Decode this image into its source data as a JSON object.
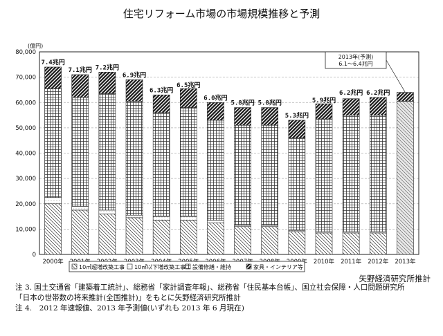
{
  "chart_data": {
    "type": "bar",
    "stacked": true,
    "title": "住宅リフォーム市場の市場規模推移と予測",
    "ylabel": "(億円)",
    "ylim": [
      0,
      80000
    ],
    "yticks": [
      "0",
      "10,000",
      "20,000",
      "30,000",
      "40,000",
      "50,000",
      "60,000",
      "70,000",
      "80,000"
    ],
    "grid": true,
    "categories": [
      "2000年",
      "2001年",
      "2002年",
      "2003年",
      "2004年",
      "2005年",
      "2006年",
      "2007年",
      "2008年",
      "2009年",
      "2010年",
      "2011年",
      "2012年",
      "2013年"
    ],
    "series": [
      {
        "name": "10㎡超増改築工事",
        "pattern": "diagonal",
        "values": [
          20000,
          17500,
          16000,
          14500,
          13500,
          13500,
          12500,
          11000,
          11000,
          9000,
          8500,
          8500,
          8500,
          60500
        ]
      },
      {
        "name": "10㎡以下増改築工事",
        "pattern": "dots",
        "values": [
          2500,
          1500,
          1500,
          1000,
          1500,
          1500,
          1000,
          500,
          500,
          500,
          500,
          500,
          500,
          0
        ]
      },
      {
        "name": "設備修繕・維持",
        "pattern": "grid",
        "values": [
          43000,
          43000,
          46000,
          45000,
          41000,
          43000,
          39500,
          39500,
          39500,
          36500,
          44500,
          46000,
          46000,
          0
        ]
      },
      {
        "name": "家具・インテリア等",
        "pattern": "hatch",
        "values": [
          8500,
          9000,
          8500,
          8500,
          7000,
          7500,
          7000,
          7000,
          7000,
          7000,
          6000,
          6500,
          7000,
          3500
        ]
      }
    ],
    "totals": [
      74000,
      71000,
      72000,
      69000,
      63000,
      65000,
      60000,
      58000,
      58000,
      53000,
      59000,
      62000,
      62000,
      64000
    ],
    "data_labels": [
      "7.4兆円",
      "7.1兆円",
      "7.2兆円",
      "6.9兆円",
      "6.3兆円",
      "6.5兆円",
      "6.0兆円",
      "5.8兆円",
      "5.8兆円",
      "5.3兆円",
      "5.9兆円",
      "6.2兆円",
      "6.2兆円",
      ""
    ],
    "annotation": {
      "line1": "2013年(予測)",
      "line2": "6.1～6.4兆円",
      "target_category": "2013年"
    },
    "legend": {
      "placement": "bottom",
      "items": [
        "10㎡超増改築工事",
        "10㎡以下増改築工事",
        "設備修繕・維持",
        "家具・インテリア等"
      ]
    }
  },
  "source": "矢野経済研究所推計",
  "notes": [
    "注 3. 国土交通省「建築着工統計」、総務省「家計調査年報」、総務省「住民基本台帳」、国立社会保障・人口問題研究所",
    "「日本の世帯数の将来推計(全国推計)」をもとに矢野経済研究所推計",
    "注 4.　2012 年速報値、2013 年予測値(いずれも 2013 年 6 月現在)"
  ],
  "colors": {
    "border": "#222222",
    "grid": "#b0b0b0",
    "bar_fill": "#ffffff",
    "forecast_fill": "#e6e6e6",
    "dark": "#111111"
  }
}
